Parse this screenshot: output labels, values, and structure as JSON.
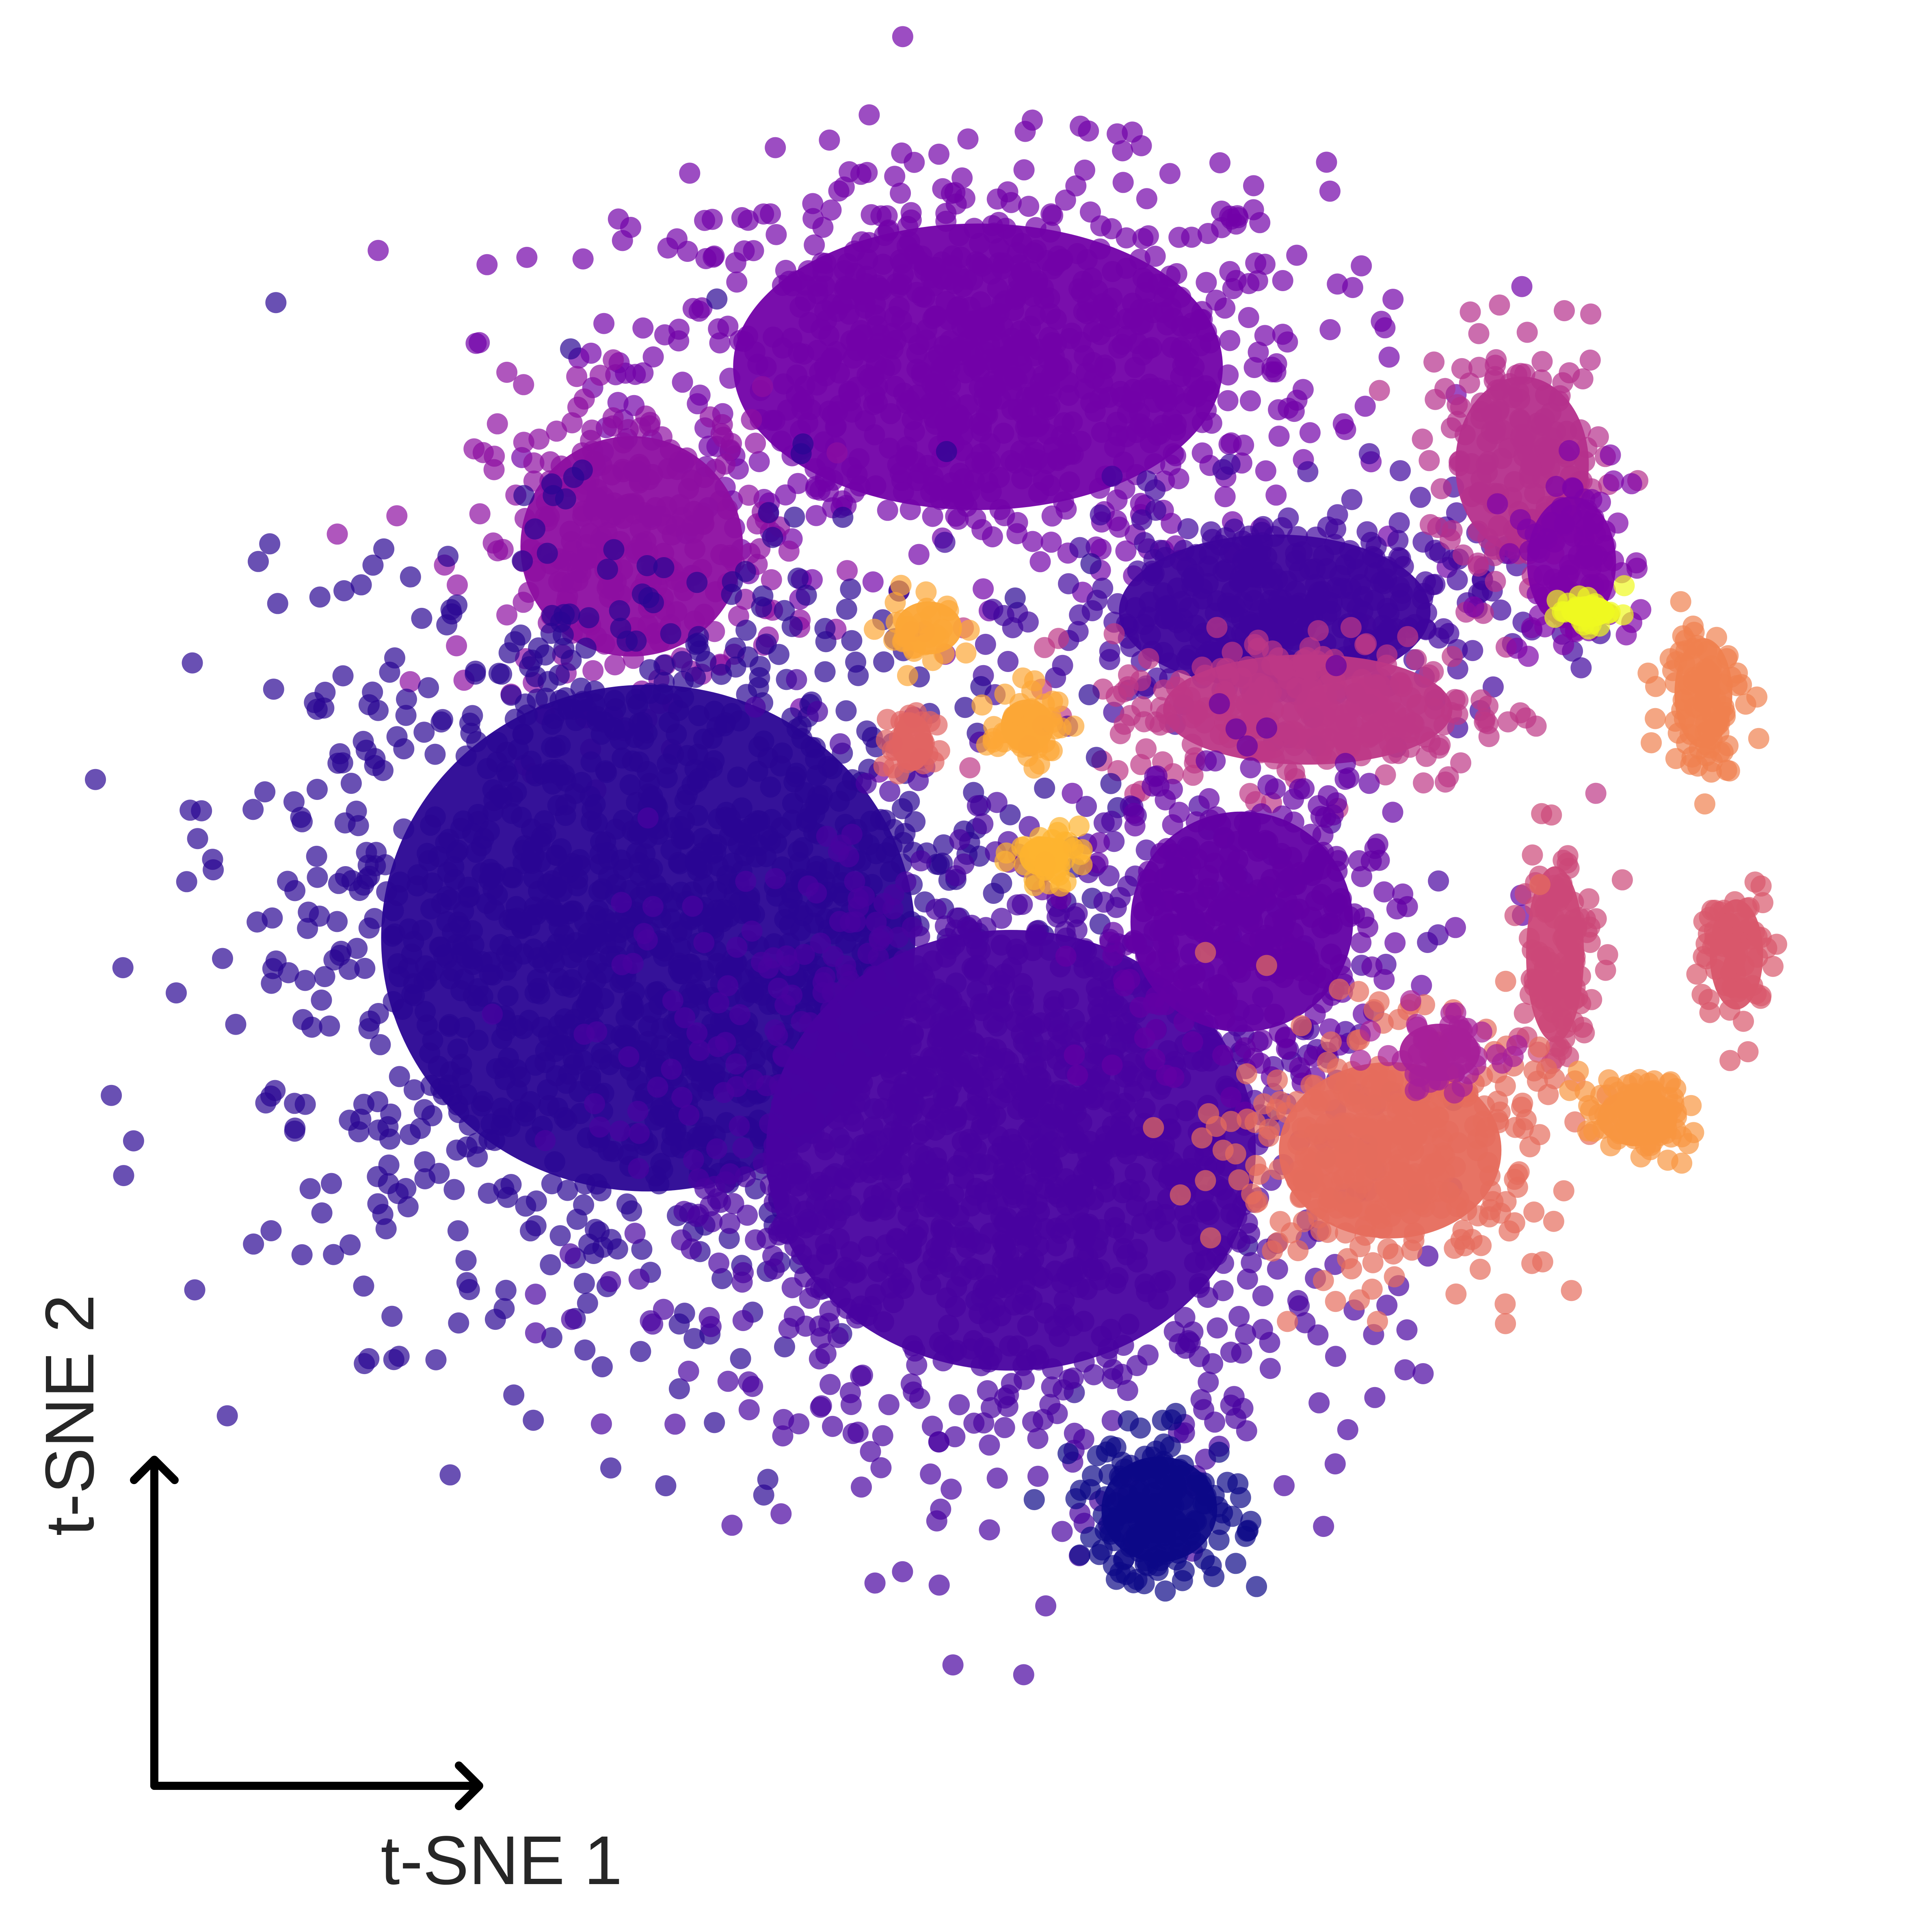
{
  "chart_data": {
    "type": "scatter",
    "title": "",
    "xlabel": "t-SNE 1",
    "ylabel": "t-SNE 2",
    "xlim": [
      0,
      100
    ],
    "ylim": [
      0,
      100
    ],
    "grid": false,
    "legend": "none",
    "axes_style": "corner arrows (bottom-left)",
    "colormap": "plasma",
    "point_opacity": 0.7,
    "clusters": [
      {
        "id": "top-center",
        "cx": 47,
        "cy": 84,
        "sx": 11,
        "sy": 6.5,
        "color": "#7201a8",
        "weight": 900
      },
      {
        "id": "upper-left",
        "cx": 26,
        "cy": 73,
        "sx": 5,
        "sy": 5,
        "color": "#8d0ea1",
        "weight": 280
      },
      {
        "id": "upper-mid-band",
        "cx": 65,
        "cy": 69,
        "sx": 7,
        "sy": 3.5,
        "color": "#3e049c",
        "weight": 380
      },
      {
        "id": "mid-right-band",
        "cx": 67,
        "cy": 63,
        "sx": 6.5,
        "sy": 2.5,
        "color": "#bd3786",
        "weight": 250
      },
      {
        "id": "large-left",
        "cx": 27,
        "cy": 49,
        "sx": 12,
        "sy": 11.5,
        "color": "#2a0593",
        "weight": 1500
      },
      {
        "id": "large-center",
        "cx": 49,
        "cy": 36,
        "sx": 11,
        "sy": 10,
        "color": "#4903a0",
        "weight": 1300
      },
      {
        "id": "mid-right-round",
        "cx": 63,
        "cy": 50,
        "sx": 5,
        "sy": 5,
        "color": "#6200a4",
        "weight": 320
      },
      {
        "id": "bottom-small",
        "cx": 58,
        "cy": 14,
        "sx": 2.6,
        "sy": 2.4,
        "color": "#0d0887",
        "weight": 170
      },
      {
        "id": "right-top-arc",
        "cx": 80,
        "cy": 78,
        "sx": 3,
        "sy": 4,
        "color": "#b52f8c",
        "weight": 160
      },
      {
        "id": "right-mid-purple",
        "cx": 83,
        "cy": 72,
        "sx": 2,
        "sy": 3,
        "color": "#7e03a8",
        "weight": 90
      },
      {
        "id": "right-orange-strip",
        "cx": 91,
        "cy": 64,
        "sx": 1.3,
        "sy": 2.5,
        "color": "#f0804e",
        "weight": 90
      },
      {
        "id": "right-pink-strip",
        "cx": 82,
        "cy": 48,
        "sx": 1.3,
        "sy": 4,
        "color": "#cc4778",
        "weight": 110
      },
      {
        "id": "right-far-pink",
        "cx": 93,
        "cy": 48,
        "sx": 1.2,
        "sy": 2.5,
        "color": "#d8576b",
        "weight": 70
      },
      {
        "id": "lower-right-salmon",
        "cx": 72,
        "cy": 36,
        "sx": 5,
        "sy": 4,
        "color": "#e66c5c",
        "weight": 360
      },
      {
        "id": "lower-right-magenta",
        "cx": 75,
        "cy": 42,
        "sx": 1.8,
        "sy": 1.3,
        "color": "#a62098",
        "weight": 60
      },
      {
        "id": "right-orange-blob",
        "cx": 87,
        "cy": 38,
        "sx": 1.8,
        "sy": 1.3,
        "color": "#f89540",
        "weight": 90
      },
      {
        "id": "center-orange",
        "cx": 50,
        "cy": 62,
        "sx": 1.2,
        "sy": 1.2,
        "color": "#fca636",
        "weight": 55
      },
      {
        "id": "center-orange-2",
        "cx": 51,
        "cy": 54,
        "sx": 1.1,
        "sy": 0.9,
        "color": "#fdb32f",
        "weight": 40
      },
      {
        "id": "center-red-small",
        "cx": 43,
        "cy": 61,
        "sx": 0.9,
        "sy": 1.3,
        "color": "#e16462",
        "weight": 35
      },
      {
        "id": "upper-orange-small",
        "cx": 44,
        "cy": 68,
        "sx": 1.5,
        "sy": 1.2,
        "color": "#fca636",
        "weight": 30
      },
      {
        "id": "right-yellow",
        "cx": 84,
        "cy": 69,
        "sx": 1.2,
        "sy": 0.7,
        "color": "#f0f921",
        "weight": 25
      }
    ]
  }
}
